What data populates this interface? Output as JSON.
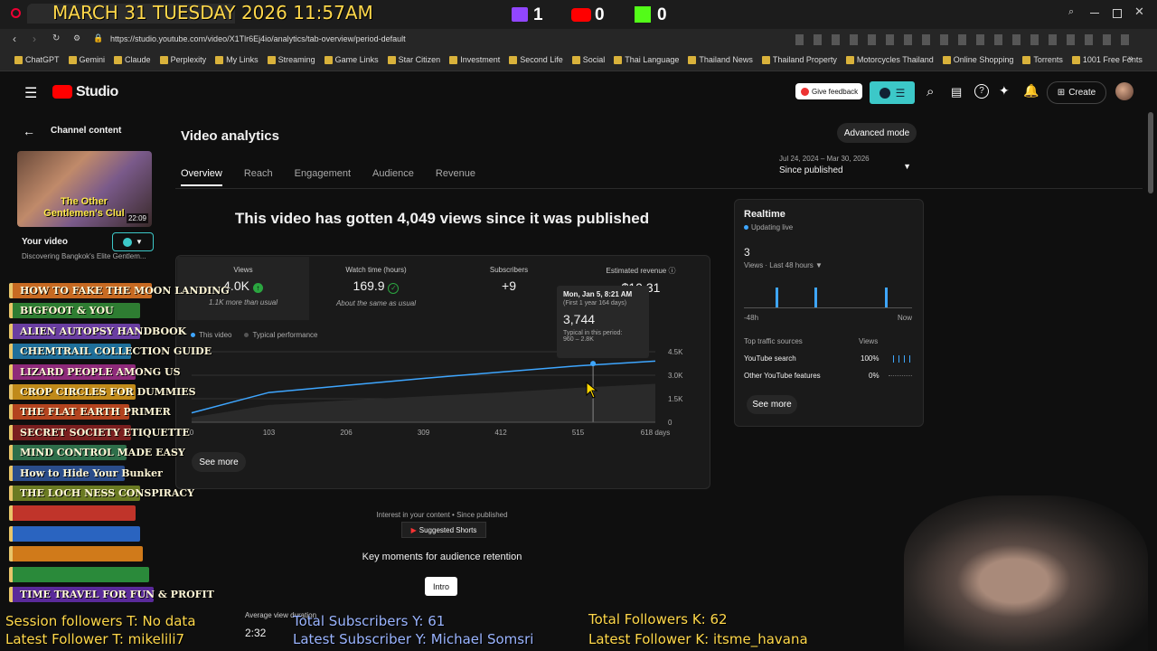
{
  "overlay": {
    "date": "MARCH 31 TUESDAY 2026 11:57AM",
    "twitch_count": "1",
    "youtube_count": "0",
    "kick_count": "0",
    "session_followers": "Session followers T: No data",
    "latest_follower_t": "Latest Follower T: mikelili7",
    "total_subscribers_y": "Total Subscribers Y: 61",
    "latest_subscriber": "Latest Subscriber Y: Michael Somsri",
    "total_followers_k": "Total Followers K: 62",
    "latest_follower_k": "Latest Follower K: itsme_havana",
    "books": [
      "HOW TO FAKE THE MOON LANDING",
      "BIGFOOT & YOU",
      "ALIEN AUTOPSY HANDBOOK",
      "CHEMTRAIL COLLECTION GUIDE",
      "LIZARD PEOPLE AMONG US",
      "CROP CIRCLES FOR DUMMIES",
      "THE FLAT EARTH PRIMER",
      "SECRET SOCIETY ETIQUETTE",
      "MIND CONTROL MADE EASY",
      "How to Hide Your Bunker",
      "THE LOCH NESS CONSPIRACY",
      "",
      "",
      "",
      "",
      "TIME TRAVEL FOR FUN & PROFIT"
    ]
  },
  "browser": {
    "url": "https://studio.youtube.com/video/X1Tlr6Ej4io/analytics/tab-overview/period-default",
    "bookmarks": [
      "ChatGPT",
      "Gemini",
      "Claude",
      "Perplexity",
      "My Links",
      "Streaming",
      "Game Links",
      "Star Citizen",
      "Investment",
      "Second Life",
      "Social",
      "Thai Language",
      "Thailand News",
      "Thailand Property",
      "Motorcycles Thailand",
      "Online Shopping",
      "Torrents",
      "1001 Free Fonts"
    ]
  },
  "header": {
    "logo": "Studio",
    "give_feedback": "Give feedback",
    "create": "Create"
  },
  "sidebar": {
    "back_label": "Channel content",
    "thumb_title": "The Other Gentlemen's Clul",
    "thumb_duration": "22:09",
    "your_video": "Your video",
    "video_title": "Discovering Bangkok's Elite Gentlem..."
  },
  "page": {
    "title": "Video analytics",
    "advanced_mode": "Advanced mode",
    "tabs": [
      "Overview",
      "Reach",
      "Engagement",
      "Audience",
      "Revenue"
    ],
    "date_range": "Jul 24, 2024 – Mar 30, 2026",
    "date_label": "Since published",
    "headline": "This video has gotten 4,049 views since it was published"
  },
  "metrics": [
    {
      "label": "Views",
      "value": "4.0K",
      "note": "1.1K more than usual"
    },
    {
      "label": "Watch time (hours)",
      "value": "169.9",
      "note": "About the same as usual"
    },
    {
      "label": "Subscribers",
      "value": "+9",
      "note": ""
    },
    {
      "label": "Estimated revenue",
      "value": "$10.31",
      "note": ""
    }
  ],
  "chart_legend": {
    "this_video": "This video",
    "typical": "Typical performance"
  },
  "tooltip": {
    "date": "Mon, Jan 5, 8:21 AM",
    "sub": "(First 1 year 164 days)",
    "value": "3,744",
    "typical_label": "Typical in this period:",
    "typical_range": "960 – 2.8K"
  },
  "chart_data": {
    "type": "area",
    "x": [
      0,
      103,
      206,
      309,
      412,
      515,
      618
    ],
    "x_tick_labels": [
      "0",
      "103",
      "206",
      "309",
      "412",
      "515",
      "618 days"
    ],
    "y_tick_labels": [
      "0",
      "1.5K",
      "3.0K",
      "4.5K"
    ],
    "ylim": [
      0,
      4500
    ],
    "series": [
      {
        "name": "This video",
        "values": [
          600,
          1900,
          2350,
          2800,
          3200,
          3600,
          3900
        ]
      },
      {
        "name": "Typical performance",
        "values": [
          300,
          1100,
          1400,
          1650,
          1900,
          2200,
          2450
        ]
      }
    ]
  },
  "see_more": "See more",
  "realtime": {
    "title": "Realtime",
    "updating": "Updating live",
    "count": "3",
    "views_label": "Views · Last 48 hours",
    "axis_left": "-48h",
    "axis_right": "Now",
    "traffic_header": "Top traffic sources",
    "views_header": "Views",
    "sources": [
      {
        "name": "YouTube search",
        "pct": "100%"
      },
      {
        "name": "Other YouTube features",
        "pct": "0%"
      }
    ],
    "see_more": "See more"
  },
  "interest": {
    "label": "Interest in your content • Since published",
    "chip": "Suggested Shorts"
  },
  "retention": {
    "title": "Key moments for audience retention",
    "intro": "Intro",
    "avg_label": "Average view duration",
    "avg_value": "2:32"
  }
}
